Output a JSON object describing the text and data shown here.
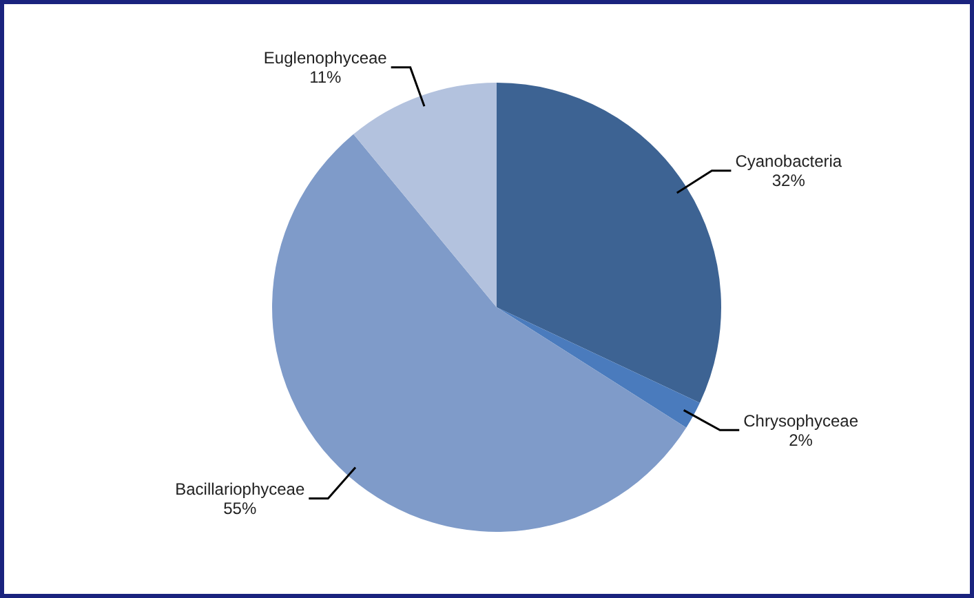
{
  "chart_data": {
    "type": "pie",
    "categories": [
      "Cyanobacteria",
      "Chrysophyceae",
      "Bacillariophyceae",
      "Euglenophyceae"
    ],
    "values": [
      32,
      2,
      55,
      11
    ],
    "colors": [
      "#3d6393",
      "#4a7bbd",
      "#7f9bc9",
      "#b3c2de"
    ],
    "value_labels": [
      "32%",
      "2%",
      "55%",
      "11%"
    ],
    "legend": false
  }
}
